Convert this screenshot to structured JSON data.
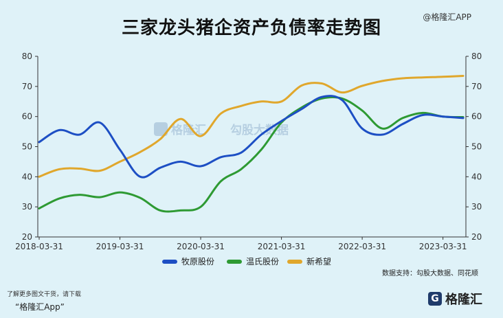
{
  "header": {
    "title": "三家龙头猪企资产负债率走势图",
    "brand": "@格隆汇APP"
  },
  "watermark": {
    "left": "格隆汇",
    "right": "勾股大数据"
  },
  "footer": {
    "note": "了解更多图文干货，请下载",
    "app": "“格隆汇App”",
    "source": "数据支持：勾股大数据、同花顺",
    "logo_badge": "G",
    "logo_text": "格隆汇"
  },
  "colors": {
    "muyuan": "#1d4fc4",
    "wens": "#2e9a33",
    "xinxiwang": "#e0a72c"
  },
  "chart_data": {
    "type": "line",
    "title": "三家龙头猪企资产负债率走势图",
    "xlabel": "",
    "ylabel": "",
    "x": [
      "2018-03-31",
      "2018-06-30",
      "2018-09-30",
      "2018-12-31",
      "2019-03-31",
      "2019-06-30",
      "2019-09-30",
      "2019-12-31",
      "2020-03-31",
      "2020-06-30",
      "2020-09-30",
      "2020-12-31",
      "2021-03-31",
      "2021-06-30",
      "2021-09-30",
      "2021-12-31",
      "2022-03-31",
      "2022-06-30",
      "2022-09-30",
      "2022-12-31",
      "2023-03-31",
      "2023-06-30"
    ],
    "x_ticks": [
      "2018-03-31",
      "2019-03-31",
      "2020-03-31",
      "2021-03-31",
      "2022-03-31",
      "2023-03-31"
    ],
    "ylim": [
      20,
      80
    ],
    "y_ticks": [
      20,
      30,
      40,
      50,
      60,
      70,
      80
    ],
    "y_ticks_right": [
      20,
      30,
      40,
      50,
      60,
      70,
      80
    ],
    "grid": false,
    "legend": "bottom",
    "series": [
      {
        "name": "牧原股份",
        "values": [
          51.5,
          55.5,
          54,
          58,
          49,
          40,
          43,
          45,
          43.5,
          46.5,
          48,
          54,
          58.5,
          62.5,
          66.5,
          65.5,
          56,
          54,
          57.5,
          60.5,
          60,
          59.5
        ]
      },
      {
        "name": "温氏股份",
        "values": [
          29.5,
          32.8,
          34,
          33.2,
          34.8,
          33,
          28.8,
          28.8,
          30,
          38.5,
          42.5,
          49,
          58,
          63,
          66,
          66,
          62,
          56,
          59.5,
          61.2,
          60,
          59.8
        ]
      },
      {
        "name": "新希望",
        "values": [
          40,
          42.5,
          42.7,
          42,
          45,
          48.2,
          52.5,
          59.2,
          53.5,
          61,
          63.5,
          65,
          65,
          70.3,
          71,
          68,
          70.2,
          71.8,
          72.7,
          73,
          73.2,
          73.5
        ]
      }
    ]
  }
}
